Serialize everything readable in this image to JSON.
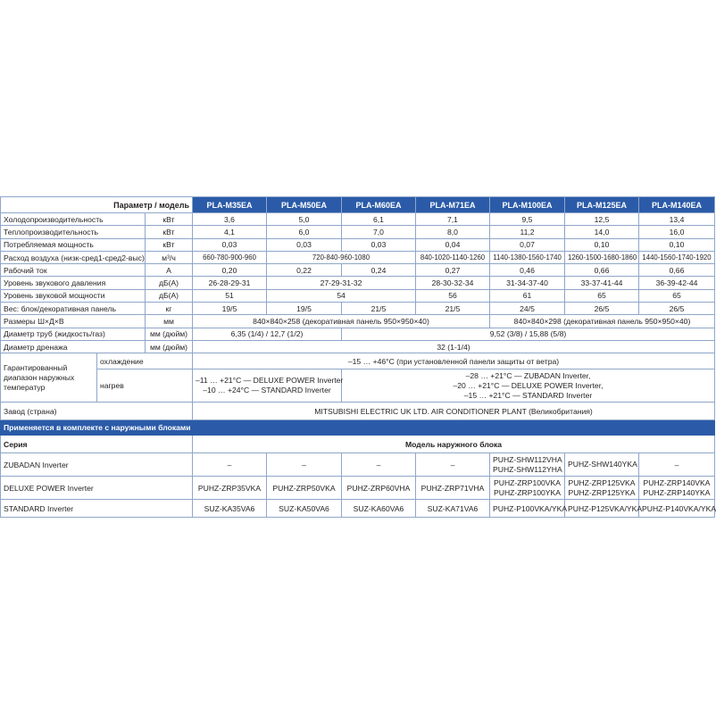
{
  "header": {
    "param_label": "Параметр / модель",
    "models": [
      "PLA-M35EA",
      "PLA-M50EA",
      "PLA-M60EA",
      "PLA-M71EA",
      "PLA-M100EA",
      "PLA-M125EA",
      "PLA-M140EA"
    ]
  },
  "rows": {
    "cooling": {
      "label": "Холодопроизводительность",
      "unit": "кВт",
      "v": [
        "3,6",
        "5,0",
        "6,1",
        "7,1",
        "9,5",
        "12,5",
        "13,4"
      ]
    },
    "heating": {
      "label": "Теплопроизводительность",
      "unit": "кВт",
      "v": [
        "4,1",
        "6,0",
        "7,0",
        "8,0",
        "11,2",
        "14,0",
        "16,0"
      ]
    },
    "power": {
      "label": "Потребляемая мощность",
      "unit": "кВт",
      "v": [
        "0,03",
        "0,03",
        "0,03",
        "0,04",
        "0,07",
        "0,10",
        "0,10"
      ]
    },
    "airflow": {
      "label": "Расход воздуха (низк-сред1-сред2-выс)",
      "unit": "м³/ч",
      "v": [
        "660-780-900-960",
        "720-840-960-1080",
        "840-1020-1140-1260",
        "1140-1380-1560-1740",
        "1260-1500-1680-1860",
        "1440-1560-1740-1920"
      ]
    },
    "current": {
      "label": "Рабочий ток",
      "unit": "А",
      "v": [
        "0,20",
        "0,22",
        "0,24",
        "0,27",
        "0,46",
        "0,66",
        "0,66"
      ]
    },
    "pressure": {
      "label": "Уровень звукового давления",
      "unit": "дБ(А)",
      "v": [
        "26-28-29-31",
        "27-29-31-32",
        "28-30-32-34",
        "31-34-37-40",
        "33-37-41-44",
        "36-39-42-44"
      ]
    },
    "soundpower": {
      "label": "Уровень звуковой мощности",
      "unit": "дБ(А)",
      "v": [
        "51",
        "54",
        "56",
        "61",
        "65",
        "65"
      ]
    },
    "weight": {
      "label": "Вес: блок/декоративная панель",
      "unit": "кг",
      "v": [
        "19/5",
        "19/5",
        "21/5",
        "21/5",
        "24/5",
        "26/5",
        "26/5"
      ]
    },
    "dims": {
      "label": "Размеры Ш×Д×В",
      "unit": "мм",
      "v": [
        "840×840×258 (декоративная панель 950×950×40)",
        "840×840×298 (декоративная панель 950×950×40)"
      ]
    },
    "pipes": {
      "label": "Диаметр труб (жидкость/газ)",
      "unit": "мм (дюйм)",
      "v": [
        "6,35 (1/4) / 12,7 (1/2)",
        "9,52 (3/8) / 15,88 (5/8)"
      ]
    },
    "drain": {
      "label": "Диаметр дренажа",
      "unit": "мм (дюйм)",
      "v": [
        "32 (1-1/4)"
      ]
    },
    "range": {
      "label": "Гарантированный диапазон наружных температур",
      "cool_label": "охлаждение",
      "cool": "–15 … +46°C (при установленной панели защиты от ветра)",
      "heat_label": "нагрев",
      "heat_a": [
        "–11 … +21°C — DELUXE POWER Inverter",
        "–10 … +24°C — STANDARD Inverter"
      ],
      "heat_b": [
        "–28 … +21°C — ZUBADAN Inverter,",
        "–20 … +21°C — DELUXE POWER Inverter,",
        "–15 … +21°C — STANDARD Inverter"
      ]
    },
    "factory": {
      "label": "Завод (страна)",
      "v": "MITSUBISHI ELECTRIC UK LTD. AIR CONDITIONER PLANT (Великобритания)"
    }
  },
  "outdoor": {
    "title": "Применяется в комплекте с наружными блоками",
    "series_label": "Серия",
    "model_label": "Модель наружного блока",
    "rows": [
      {
        "series": "ZUBADAN Inverter",
        "v": [
          "–",
          "–",
          "–",
          "–",
          [
            "PUHZ-SHW112VHA",
            "PUHZ-SHW112YHA"
          ],
          [
            "PUHZ-SHW140YKA"
          ],
          "–"
        ]
      },
      {
        "series": "DELUXE POWER Inverter",
        "v": [
          "PUHZ-ZRP35VKA",
          "PUHZ-ZRP50VKA",
          "PUHZ-ZRP60VHA",
          "PUHZ-ZRP71VHA",
          [
            "PUHZ-ZRP100VKA",
            "PUHZ-ZRP100YKA"
          ],
          [
            "PUHZ-ZRP125VKA",
            "PUHZ-ZRP125YKA"
          ],
          [
            "PUHZ-ZRP140VKA",
            "PUHZ-ZRP140YKA"
          ]
        ]
      },
      {
        "series": "STANDARD Inverter",
        "v": [
          "SUZ-KA35VA6",
          "SUZ-KA50VA6",
          "SUZ-KA60VA6",
          "SUZ-KA71VA6",
          "PUHZ-P100VKA/YKA",
          "PUHZ-P125VKA/YKA",
          "PUHZ-P140VKA/YKA"
        ]
      }
    ]
  },
  "colors": {
    "header_blue": "#2b5ba8",
    "border": "#8fa6c8"
  }
}
